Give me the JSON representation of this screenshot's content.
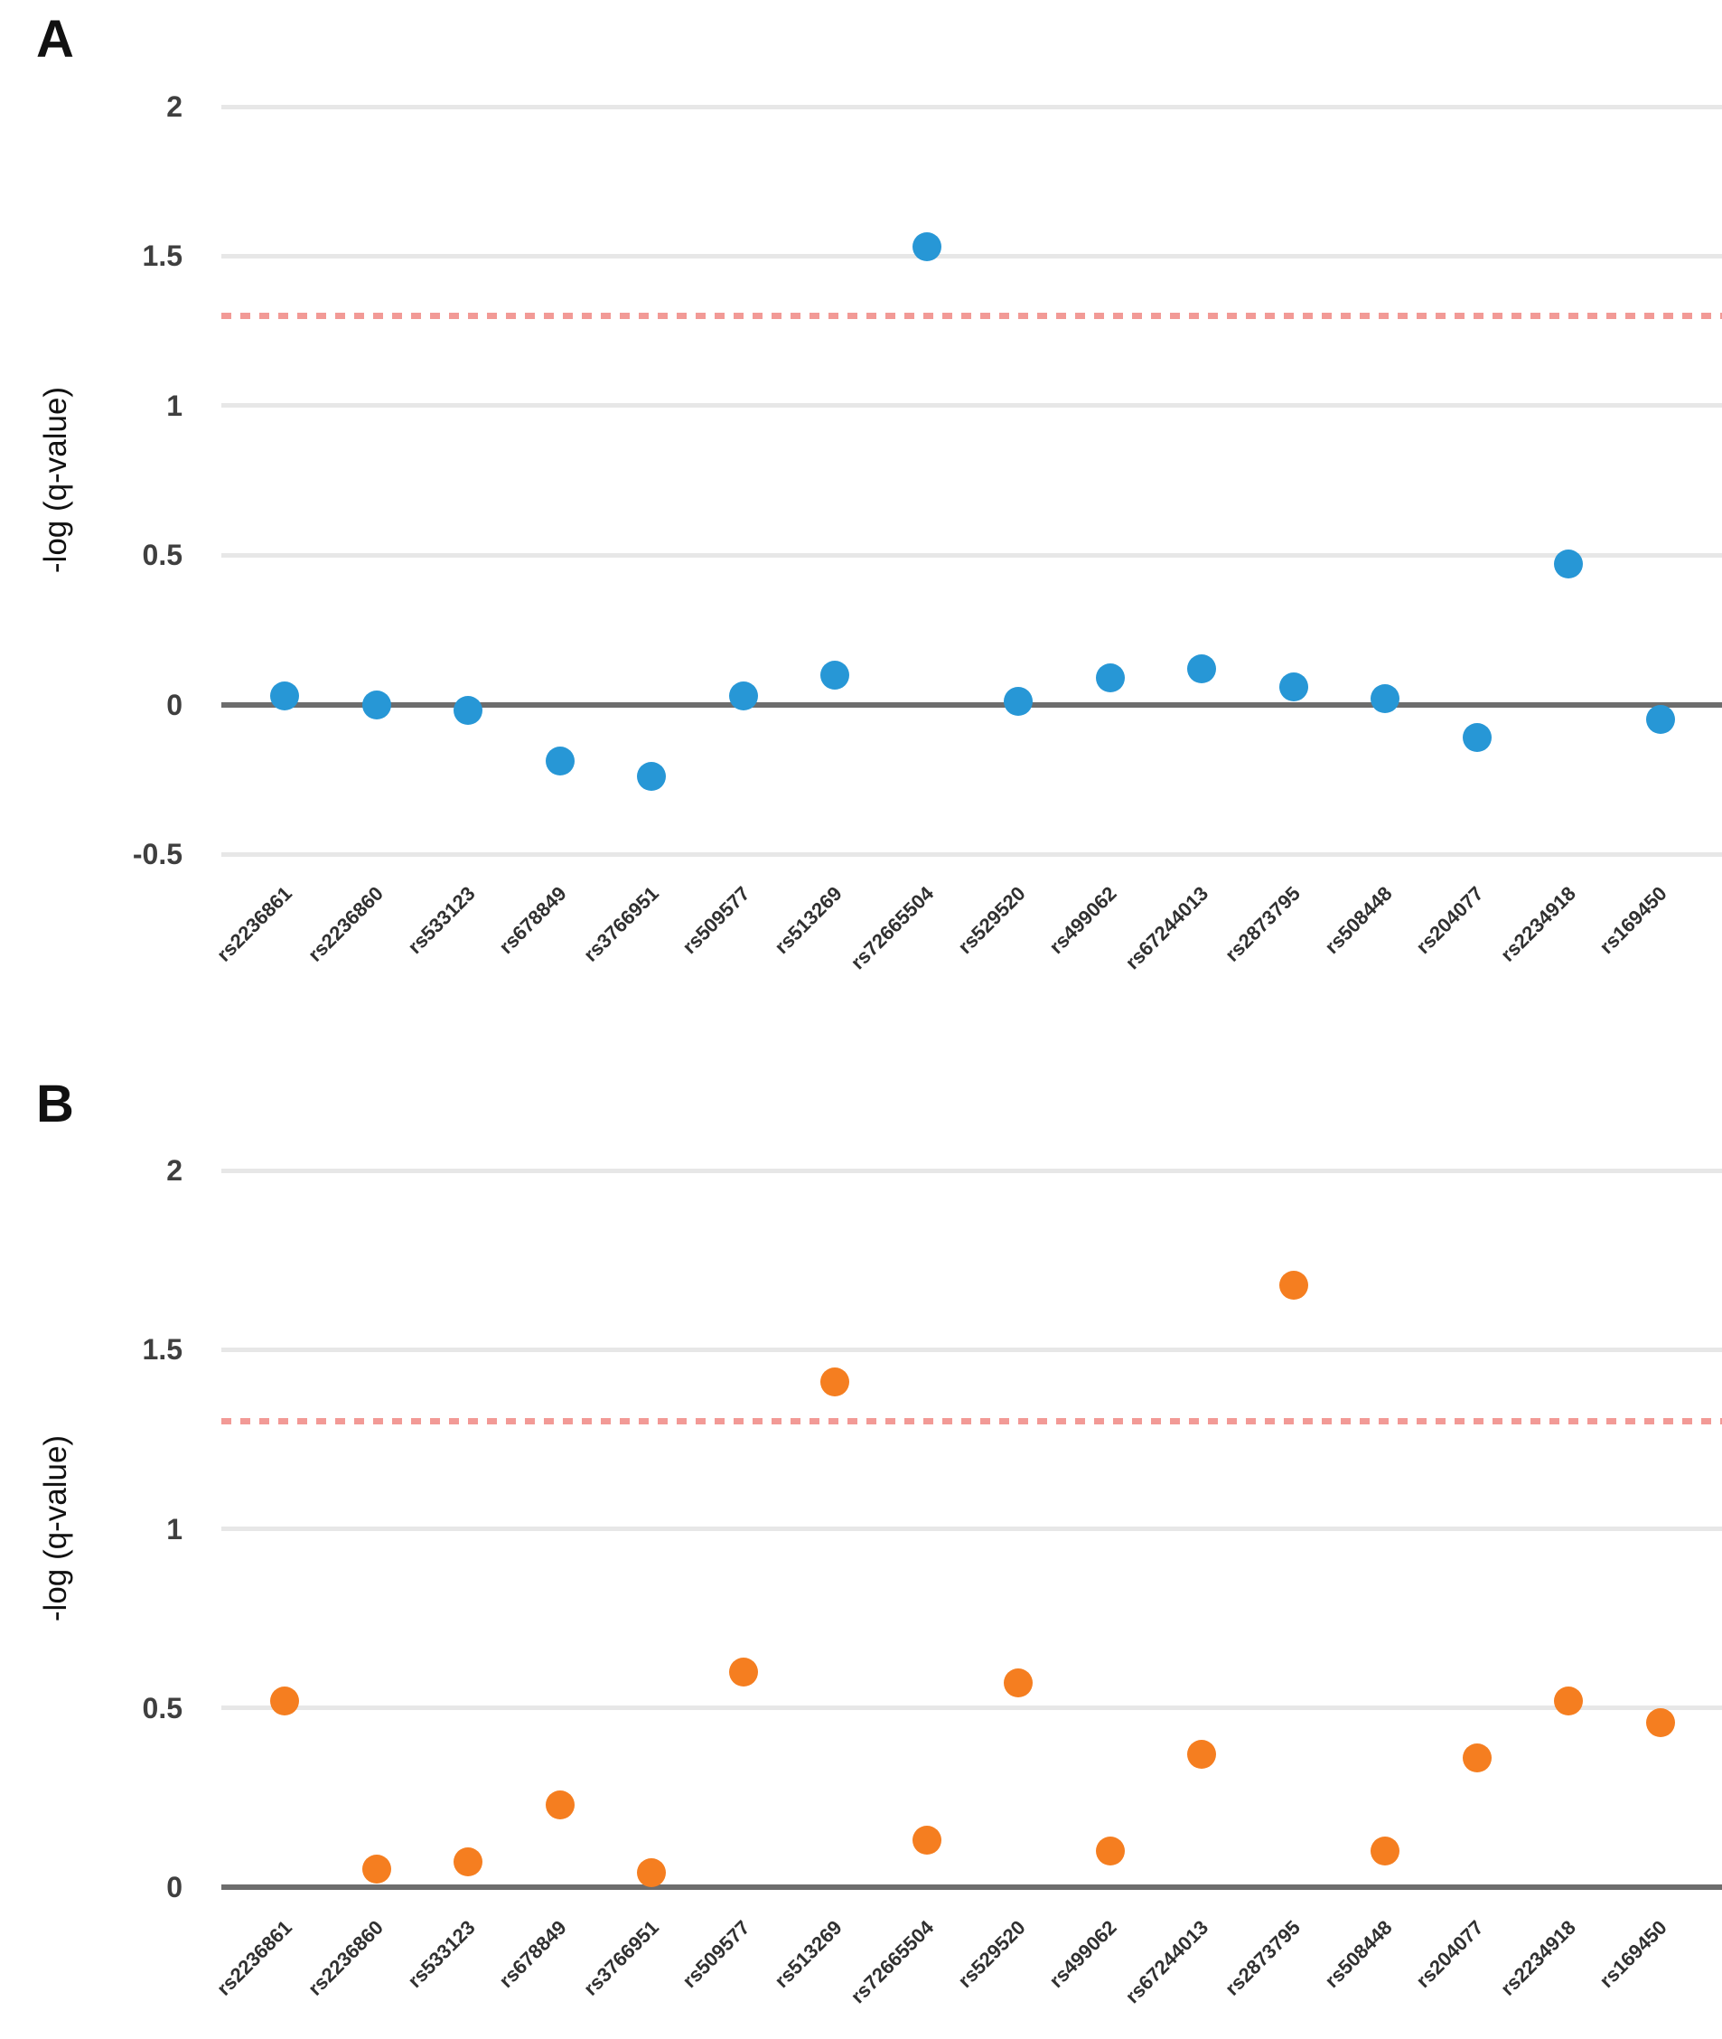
{
  "figure": {
    "type": "two-panel scatter plot",
    "y_axis_title": "-log (q-value)"
  },
  "chart_data": [
    {
      "type": "scatter",
      "title": "A",
      "ylabel": "-log (q-value)",
      "categories": [
        "rs2236861",
        "rs2236860",
        "rs533123",
        "rs678849",
        "rs3766951",
        "rs509577",
        "rs513269",
        "rs72665504",
        "rs529520",
        "rs499062",
        "rs67244013",
        "rs2873795",
        "rs508448",
        "rs204077",
        "rs2234918",
        "rs169450"
      ],
      "values": [
        0.03,
        0.0,
        -0.02,
        -0.19,
        -0.24,
        0.03,
        0.1,
        1.53,
        0.01,
        0.09,
        0.12,
        0.06,
        0.02,
        -0.11,
        0.47,
        -0.05
      ],
      "ylim": [
        -0.5,
        2
      ],
      "yticks": [
        "2",
        "1.5",
        "1",
        "0.5",
        "0",
        "-0.5"
      ],
      "threshold": 1.3,
      "threshold_style": "dashed",
      "threshold_color": "#f29a96",
      "point_color": "#2797d6",
      "grid": true,
      "legend": "none"
    },
    {
      "type": "scatter",
      "title": "B",
      "ylabel": "-log (q-value)",
      "categories": [
        "rs2236861",
        "rs2236860",
        "rs533123",
        "rs678849",
        "rs3766951",
        "rs509577",
        "rs513269",
        "rs72665504",
        "rs529520",
        "rs499062",
        "rs67244013",
        "rs2873795",
        "rs508448",
        "rs204077",
        "rs2234918",
        "rs169450"
      ],
      "values": [
        0.52,
        0.05,
        0.07,
        0.23,
        0.04,
        0.6,
        1.41,
        0.13,
        0.57,
        0.1,
        0.37,
        1.68,
        0.1,
        0.36,
        0.52,
        0.46
      ],
      "ylim": [
        0,
        2
      ],
      "yticks": [
        "2",
        "1.5",
        "1",
        "0.5",
        "0"
      ],
      "threshold": 1.3,
      "threshold_style": "dashed",
      "threshold_color": "#f29a96",
      "point_color": "#f57e20",
      "grid": true,
      "legend": "none"
    }
  ]
}
